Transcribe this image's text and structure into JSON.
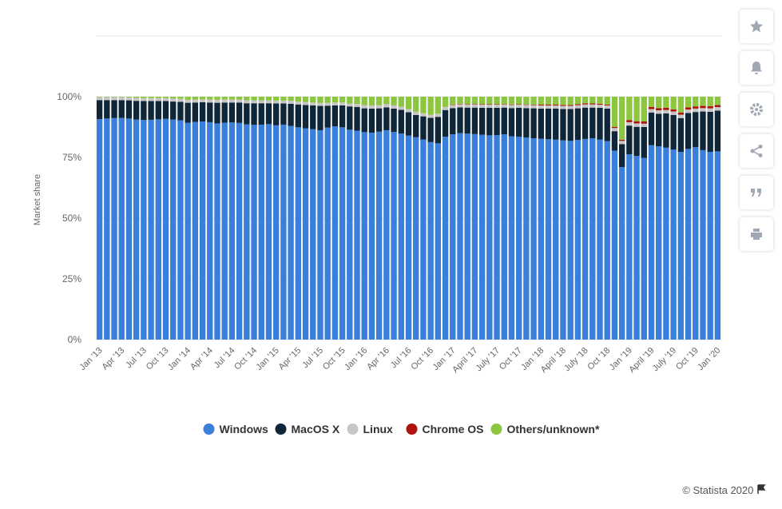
{
  "chart_data": {
    "type": "stacked_bar",
    "categories": [
      "Jan '13",
      null,
      null,
      "Apr '13",
      null,
      null,
      "Jul '13",
      null,
      null,
      "Oct '13",
      null,
      null,
      "Jan '14",
      null,
      null,
      "Apr '14",
      null,
      null,
      "Jul '14",
      null,
      null,
      "Oct '14",
      null,
      null,
      "Jan '15",
      null,
      null,
      "Apr '15",
      null,
      null,
      "Jul '15",
      null,
      null,
      "Oct '15",
      null,
      null,
      "Jan '16",
      null,
      null,
      "Apr '16",
      null,
      null,
      "Jul '16",
      null,
      null,
      "Oct '16",
      null,
      null,
      "Jan '17",
      null,
      null,
      "April '17",
      null,
      null,
      "July '17",
      null,
      null,
      "Oct '17",
      null,
      null,
      "Jan '18",
      null,
      null,
      "April '18",
      null,
      null,
      "July '18",
      null,
      null,
      "Oct '18",
      null,
      null,
      "Jan '19",
      null,
      null,
      "April '19",
      null,
      null,
      "July '19",
      null,
      null,
      "Oct '19",
      null,
      null,
      "Jan '20"
    ],
    "series": [
      {
        "name": "Windows",
        "color": "#3a7fd9",
        "values": [
          90.8,
          91.0,
          91.2,
          91.3,
          91.0,
          90.6,
          90.4,
          90.5,
          90.7,
          90.9,
          90.6,
          90.3,
          89.3,
          89.6,
          89.8,
          89.5,
          89.0,
          89.3,
          89.4,
          89.2,
          88.6,
          88.4,
          88.5,
          88.7,
          88.2,
          88.5,
          88.0,
          87.4,
          87.0,
          86.6,
          86.2,
          87.3,
          87.8,
          87.4,
          86.4,
          86.0,
          85.4,
          85.2,
          85.6,
          86.2,
          85.5,
          84.8,
          84.0,
          83.3,
          82.4,
          81.3,
          80.8,
          83.5,
          84.5,
          85.0,
          84.8,
          84.6,
          84.3,
          84.1,
          84.2,
          84.5,
          83.7,
          83.5,
          83.2,
          82.9,
          82.7,
          82.5,
          82.3,
          82.0,
          81.8,
          82.2,
          82.6,
          82.9,
          82.4,
          81.7,
          77.8,
          71.0,
          76.3,
          75.6,
          74.8,
          80.0,
          79.6,
          79.0,
          78.2,
          77.3,
          78.5,
          79.2,
          78.0,
          77.3,
          77.5
        ]
      },
      {
        "name": "MacOS X",
        "color": "#0f2538",
        "values": [
          7.8,
          7.6,
          7.4,
          7.3,
          7.5,
          7.7,
          7.8,
          7.7,
          7.5,
          7.3,
          7.4,
          7.6,
          8.2,
          8.0,
          7.9,
          8.1,
          8.5,
          8.3,
          8.2,
          8.4,
          8.7,
          8.9,
          8.8,
          8.6,
          9.0,
          8.7,
          9.1,
          9.4,
          9.6,
          9.8,
          10.0,
          9.0,
          8.6,
          9.0,
          9.6,
          9.8,
          9.8,
          9.9,
          9.6,
          9.4,
          9.6,
          9.8,
          9.6,
          9.2,
          9.5,
          10.0,
          10.9,
          11.0,
          10.8,
          10.6,
          10.7,
          10.9,
          11.1,
          11.3,
          11.2,
          11.0,
          11.6,
          11.9,
          12.1,
          12.3,
          12.4,
          12.6,
          12.8,
          12.9,
          13.1,
          13.0,
          12.9,
          12.6,
          13.0,
          13.4,
          8.0,
          9.5,
          11.8,
          12.0,
          12.7,
          13.5,
          13.4,
          14.1,
          14.3,
          13.9,
          14.8,
          14.5,
          15.9,
          16.5,
          16.8
        ]
      },
      {
        "name": "Linux",
        "color": "#c6c6c6",
        "values": [
          1.2,
          1.2,
          1.2,
          1.2,
          1.2,
          1.2,
          1.2,
          1.2,
          1.2,
          1.2,
          1.2,
          1.2,
          1.2,
          1.2,
          1.2,
          1.2,
          1.2,
          1.2,
          1.2,
          1.2,
          1.2,
          1.2,
          1.2,
          1.2,
          1.2,
          1.2,
          1.2,
          1.2,
          1.2,
          1.2,
          1.2,
          1.2,
          1.2,
          1.2,
          1.2,
          1.2,
          1.3,
          1.3,
          1.3,
          1.3,
          1.3,
          1.3,
          1.3,
          1.3,
          1.3,
          1.3,
          1.3,
          1.3,
          1.3,
          1.3,
          1.3,
          1.3,
          1.3,
          1.3,
          1.3,
          1.3,
          1.3,
          1.3,
          1.3,
          1.3,
          1.3,
          1.3,
          1.3,
          1.3,
          1.3,
          1.3,
          1.3,
          1.3,
          1.3,
          1.3,
          1.3,
          1.3,
          1.4,
          1.4,
          1.4,
          1.4,
          1.4,
          1.4,
          1.4,
          1.4,
          1.4,
          1.4,
          1.4,
          1.4,
          1.4
        ]
      },
      {
        "name": "Chrome OS",
        "color": "#b0120e",
        "values": [
          0,
          0,
          0,
          0,
          0,
          0,
          0,
          0,
          0,
          0,
          0,
          0,
          0,
          0,
          0,
          0,
          0,
          0,
          0,
          0,
          0,
          0,
          0,
          0,
          0,
          0,
          0,
          0,
          0,
          0,
          0,
          0,
          0,
          0,
          0,
          0,
          0,
          0,
          0,
          0,
          0,
          0,
          0,
          0,
          0,
          0,
          0,
          0,
          0.2,
          0.2,
          0.2,
          0.2,
          0.2,
          0.2,
          0.2,
          0.2,
          0.2,
          0.2,
          0.2,
          0.2,
          0.4,
          0.4,
          0.4,
          0.4,
          0.4,
          0.4,
          0.4,
          0.4,
          0.4,
          0.4,
          0.5,
          0.5,
          0.9,
          0.9,
          0.9,
          0.9,
          0.9,
          0.9,
          0.9,
          0.9,
          0.9,
          0.9,
          0.9,
          0.9,
          0.9
        ]
      },
      {
        "name": "Others/unknown*",
        "color": "#8dc63f",
        "values": [
          0.2,
          0.2,
          0.2,
          0.2,
          0.3,
          0.5,
          0.6,
          0.6,
          0.6,
          0.6,
          0.8,
          0.9,
          1.3,
          1.2,
          1.1,
          1.2,
          1.3,
          1.2,
          1.2,
          1.2,
          1.5,
          1.5,
          1.5,
          1.5,
          1.6,
          1.6,
          1.7,
          2.0,
          2.2,
          2.4,
          2.6,
          2.5,
          2.4,
          2.4,
          2.8,
          3.0,
          3.5,
          3.6,
          3.5,
          3.1,
          3.6,
          4.1,
          5.1,
          6.2,
          6.8,
          7.4,
          7.0,
          4.2,
          3.2,
          2.9,
          3.0,
          3.0,
          3.1,
          3.1,
          3.1,
          3.0,
          3.2,
          3.1,
          3.2,
          3.3,
          3.2,
          3.2,
          3.2,
          3.4,
          3.4,
          3.1,
          2.8,
          2.8,
          2.9,
          3.2,
          12.4,
          17.7,
          9.6,
          10.1,
          10.2,
          4.2,
          4.7,
          4.6,
          5.2,
          6.5,
          4.4,
          4.0,
          3.8,
          3.9,
          3.4
        ]
      }
    ],
    "ylabel": "Market share",
    "ylim": [
      0,
      125
    ],
    "yticks": [
      {
        "value": 0,
        "label": "0%"
      },
      {
        "value": 25,
        "label": "25%"
      },
      {
        "value": 50,
        "label": "50%"
      },
      {
        "value": 75,
        "label": "75%"
      },
      {
        "value": 100,
        "label": "100%"
      }
    ],
    "grid": true,
    "legend": "bottom"
  },
  "credit": "© Statista 2020"
}
